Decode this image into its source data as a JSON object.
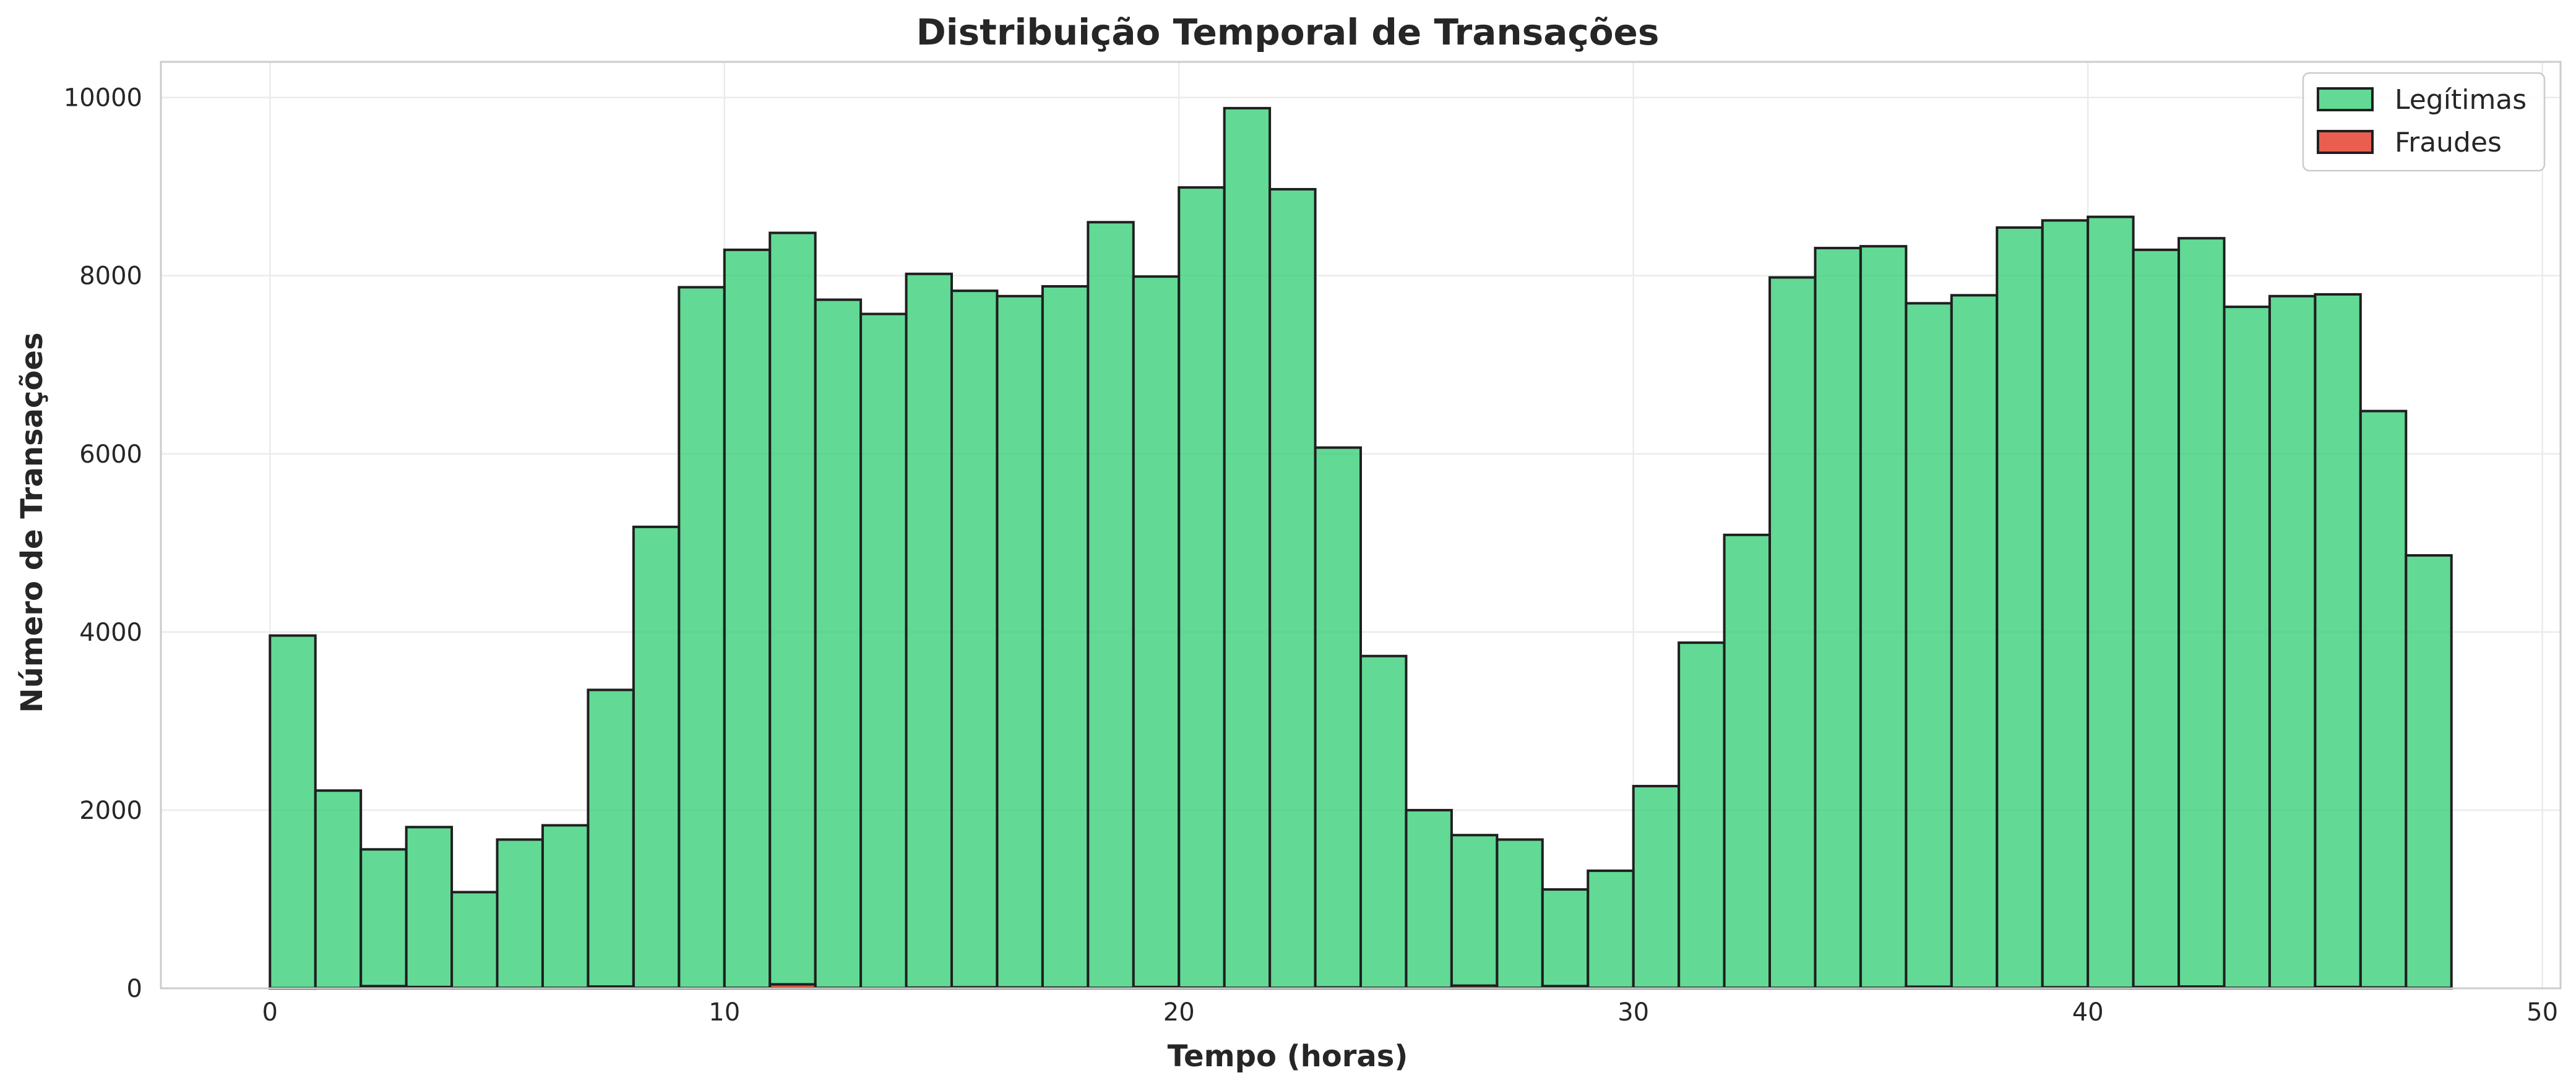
{
  "chart_data": {
    "type": "bar",
    "title": "Distribuição Temporal de Transações",
    "xlabel": "Tempo (horas)",
    "ylabel": "Número de Transações",
    "xlim": [
      -2.4,
      50.4
    ],
    "ylim": [
      0,
      10400
    ],
    "x_ticks": [
      0,
      10,
      20,
      30,
      40,
      50
    ],
    "y_ticks": [
      0,
      2000,
      4000,
      6000,
      8000,
      10000
    ],
    "grid": true,
    "legend_position": "top-right",
    "bin_edges": [
      0,
      1,
      2,
      3,
      4,
      5,
      6,
      7,
      8,
      9,
      10,
      11,
      12,
      13,
      14,
      15,
      16,
      17,
      18,
      19,
      20,
      21,
      22,
      23,
      24,
      25,
      26,
      27,
      28,
      29,
      30,
      31,
      32,
      33,
      34,
      35,
      36,
      37,
      38,
      39,
      40,
      41,
      42,
      43,
      44,
      45,
      46,
      47,
      48
    ],
    "series": [
      {
        "name": "Legítimas",
        "color": "#2ecc71",
        "values": [
          3960,
          2220,
          1560,
          1810,
          1080,
          1670,
          1830,
          3350,
          5180,
          7870,
          8290,
          8480,
          7730,
          7570,
          8020,
          7830,
          7770,
          7880,
          8600,
          7990,
          8990,
          9880,
          8970,
          6070,
          3730,
          2000,
          1720,
          1670,
          1110,
          1320,
          2270,
          3880,
          5090,
          7980,
          8310,
          8330,
          7690,
          7780,
          8540,
          8620,
          8660,
          8290,
          8420,
          7650,
          7770,
          7790,
          6480,
          4860
        ]
      },
      {
        "name": "Fraudes",
        "color": "#e74c3c",
        "values": [
          2,
          3,
          25,
          15,
          5,
          5,
          5,
          20,
          5,
          3,
          5,
          45,
          5,
          3,
          8,
          12,
          10,
          8,
          5,
          15,
          8,
          5,
          5,
          10,
          5,
          5,
          30,
          5,
          25,
          5,
          5,
          5,
          5,
          5,
          5,
          5,
          18,
          5,
          5,
          12,
          5,
          15,
          20,
          5,
          5,
          15,
          10,
          5
        ]
      }
    ]
  }
}
